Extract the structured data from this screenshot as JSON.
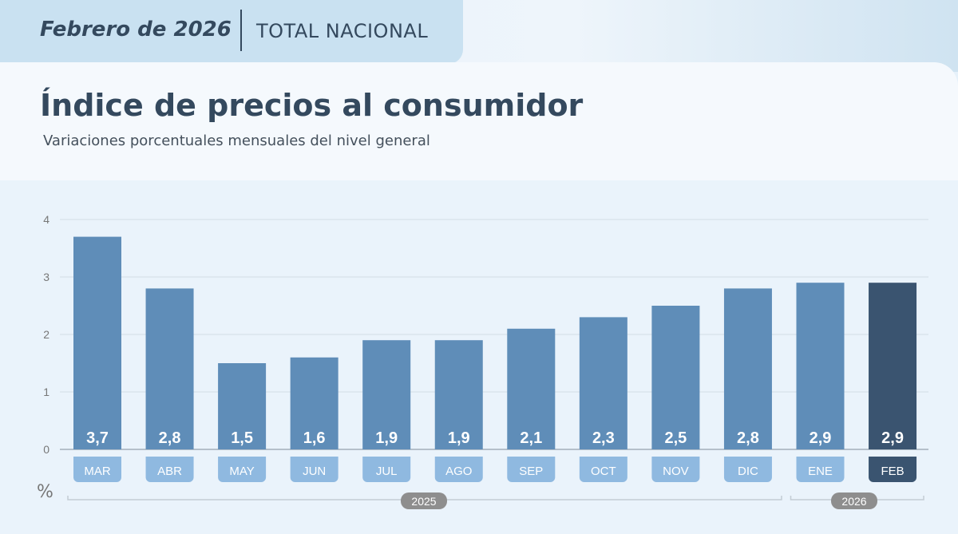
{
  "header": {
    "date": "Febrero de 2026",
    "scope": "TOTAL NACIONAL"
  },
  "chart_data": {
    "type": "bar",
    "title": "Índice de precios al consumidor",
    "subtitle": "Variaciones porcentuales mensuales del nivel general",
    "ylabel": "%",
    "ylim": [
      0,
      4
    ],
    "yticks": [
      "0",
      "1",
      "2",
      "3",
      "4"
    ],
    "categories": [
      "MAR",
      "ABR",
      "MAY",
      "JUN",
      "JUL",
      "AGO",
      "SEP",
      "OCT",
      "NOV",
      "DIC",
      "ENE",
      "FEB"
    ],
    "values": [
      3.7,
      2.8,
      1.5,
      1.6,
      1.9,
      1.9,
      2.1,
      2.3,
      2.5,
      2.8,
      2.9,
      2.9
    ],
    "value_labels": [
      "3,7",
      "2,8",
      "1,5",
      "1,6",
      "1,9",
      "1,9",
      "2,1",
      "2,3",
      "2,5",
      "2,8",
      "2,9",
      "2,9"
    ],
    "highlight_index": 11,
    "year_groups": [
      {
        "label": "2025",
        "from": 0,
        "to": 9
      },
      {
        "label": "2026",
        "from": 10,
        "to": 11
      }
    ],
    "colors": {
      "bar": "#5f8db8",
      "highlight": "#3a5470",
      "label_box": "#8fb9e0"
    },
    "grid": true
  }
}
